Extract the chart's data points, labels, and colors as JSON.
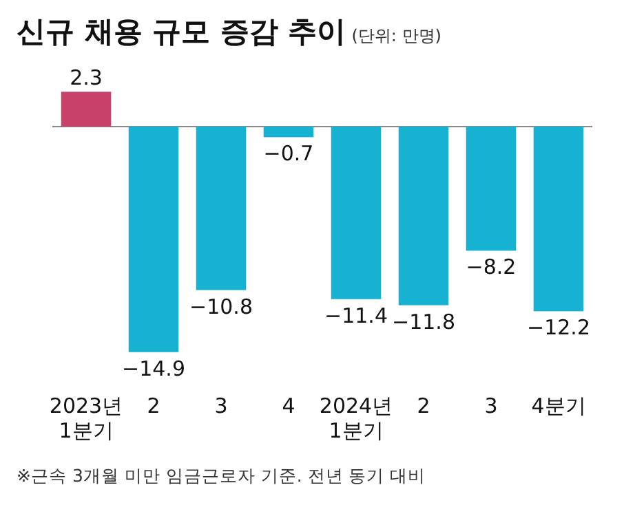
{
  "chart_data": {
    "type": "bar",
    "title": "신규 채용 규모 증감 추이",
    "subtitle": "(단위: 만명)",
    "categories": [
      "2023년\n1분기",
      "2",
      "3",
      "4",
      "2024년\n1분기",
      "2",
      "3",
      "4분기"
    ],
    "values": [
      2.3,
      -14.9,
      -10.8,
      -0.7,
      -11.4,
      -11.8,
      -8.2,
      -12.2
    ],
    "colors": [
      "#c8416b",
      "#17b2d2",
      "#17b2d2",
      "#17b2d2",
      "#17b2d2",
      "#17b2d2",
      "#17b2d2",
      "#17b2d2"
    ],
    "data_labels": true,
    "annotations": [
      "※근속 3개월 미만 임금근로자 기준. 전년 동기 대비"
    ]
  }
}
